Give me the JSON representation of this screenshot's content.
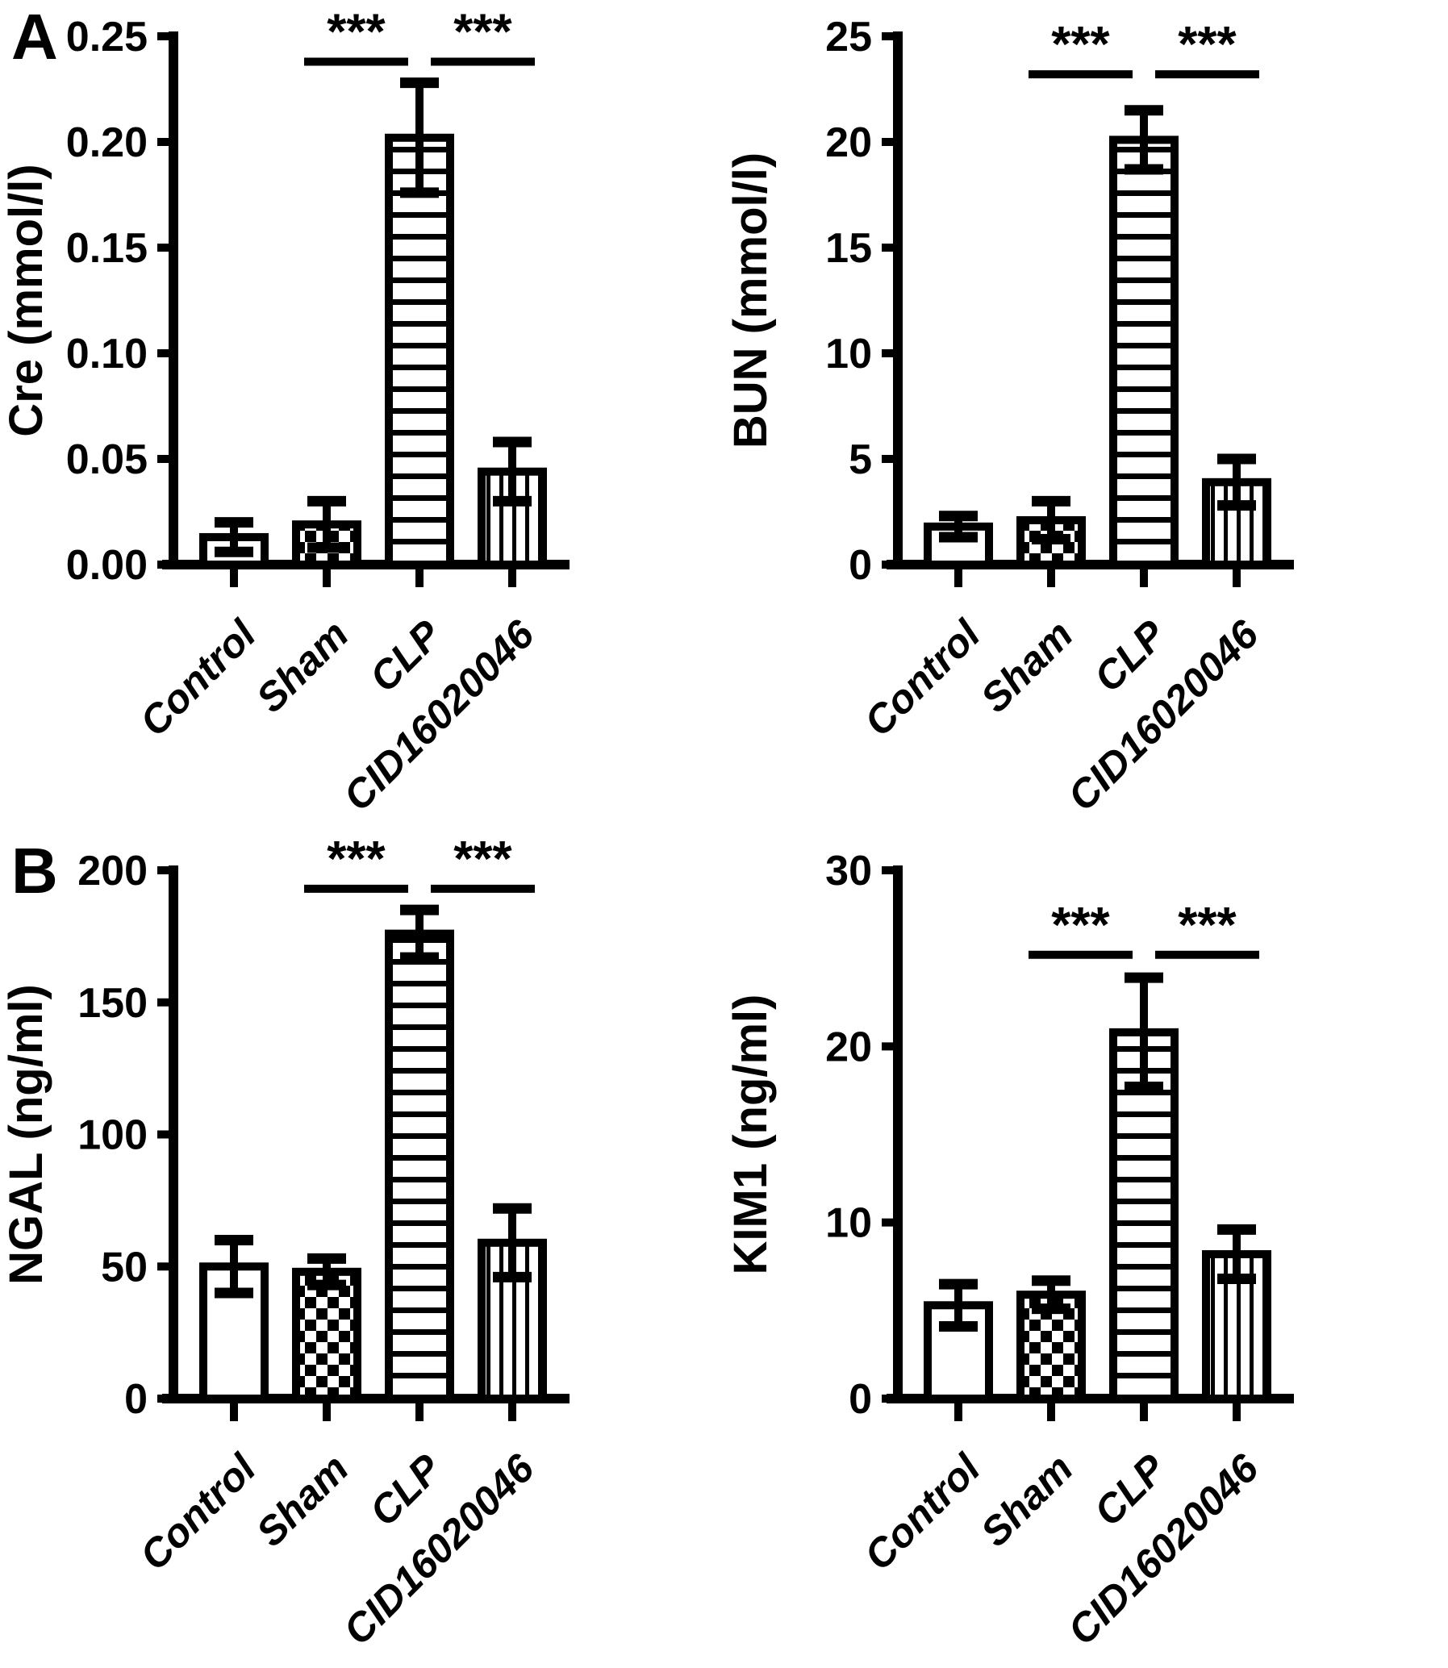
{
  "figure_type": "scientific-bar-chart-figure",
  "colors": {
    "ink": "#000000",
    "background": "#ffffff"
  },
  "panels": [
    {
      "label": "A"
    },
    {
      "label": "B"
    }
  ],
  "groups": [
    "Control",
    "Sham",
    "CLP",
    "CID16020046"
  ],
  "significance_marker": "***",
  "chart_data": [
    {
      "type": "bar",
      "panel": "A",
      "position": "top-left",
      "title": "",
      "xlabel": "",
      "ylabel": "Cre (mmol/l)",
      "categories": [
        "Control",
        "Sham",
        "CLP",
        "CID16020046"
      ],
      "values": [
        0.013,
        0.019,
        0.202,
        0.044
      ],
      "errors": [
        0.007,
        0.011,
        0.026,
        0.014
      ],
      "ylim": [
        0,
        0.25
      ],
      "yticks": [
        0,
        0.05,
        0.1,
        0.15,
        0.2,
        0.25
      ],
      "ytick_labels": [
        "0.00",
        "0.05",
        "0.10",
        "0.15",
        "0.20",
        "0.25"
      ],
      "bar_patterns": [
        "plain",
        "checker",
        "hlines",
        "vlines"
      ],
      "grid": false,
      "legend": "none",
      "sig_brackets": [
        {
          "from": 1,
          "to": 2,
          "label": "***",
          "y": 0.238
        },
        {
          "from": 2,
          "to": 3,
          "label": "***",
          "y": 0.238
        }
      ]
    },
    {
      "type": "bar",
      "panel": "A",
      "position": "top-right",
      "title": "",
      "xlabel": "",
      "ylabel": "BUN (mmol/l)",
      "categories": [
        "Control",
        "Sham",
        "CLP",
        "CID16020046"
      ],
      "values": [
        1.8,
        2.1,
        20.1,
        3.9
      ],
      "errors": [
        0.5,
        0.9,
        1.4,
        1.1
      ],
      "ylim": [
        0,
        25
      ],
      "yticks": [
        0,
        5,
        10,
        15,
        20,
        25
      ],
      "ytick_labels": [
        "0",
        "5",
        "10",
        "15",
        "20",
        "25"
      ],
      "bar_patterns": [
        "plain",
        "checker",
        "hlines",
        "vlines"
      ],
      "grid": false,
      "legend": "none",
      "sig_brackets": [
        {
          "from": 1,
          "to": 2,
          "label": "***",
          "y": 23.2
        },
        {
          "from": 2,
          "to": 3,
          "label": "***",
          "y": 23.2
        }
      ]
    },
    {
      "type": "bar",
      "panel": "B",
      "position": "bottom-left",
      "title": "",
      "xlabel": "",
      "ylabel": "NGAL (ng/ml)",
      "categories": [
        "Control",
        "Sham",
        "CLP",
        "CID16020046"
      ],
      "values": [
        50,
        48,
        176,
        59
      ],
      "errors": [
        10,
        5,
        9,
        13
      ],
      "ylim": [
        0,
        200
      ],
      "yticks": [
        0,
        50,
        100,
        150,
        200
      ],
      "ytick_labels": [
        "0",
        "50",
        "100",
        "150",
        "200"
      ],
      "bar_patterns": [
        "plain",
        "checker",
        "hlines",
        "vlines"
      ],
      "grid": false,
      "legend": "none",
      "sig_brackets": [
        {
          "from": 1,
          "to": 2,
          "label": "***",
          "y": 193
        },
        {
          "from": 2,
          "to": 3,
          "label": "***",
          "y": 193
        }
      ]
    },
    {
      "type": "bar",
      "panel": "B",
      "position": "bottom-right",
      "title": "",
      "xlabel": "",
      "ylabel": "KIM1 (ng/ml)",
      "categories": [
        "Control",
        "Sham",
        "CLP",
        "CID16020046"
      ],
      "values": [
        5.3,
        5.9,
        20.8,
        8.2
      ],
      "errors": [
        1.2,
        0.8,
        3.1,
        1.4
      ],
      "ylim": [
        0,
        30
      ],
      "yticks": [
        0,
        10,
        20,
        30
      ],
      "ytick_labels": [
        "0",
        "10",
        "20",
        "30"
      ],
      "bar_patterns": [
        "plain",
        "checker",
        "hlines",
        "vlines"
      ],
      "grid": false,
      "legend": "none",
      "sig_brackets": [
        {
          "from": 1,
          "to": 2,
          "label": "***",
          "y": 25.2
        },
        {
          "from": 2,
          "to": 3,
          "label": "***",
          "y": 25.2
        }
      ]
    }
  ]
}
